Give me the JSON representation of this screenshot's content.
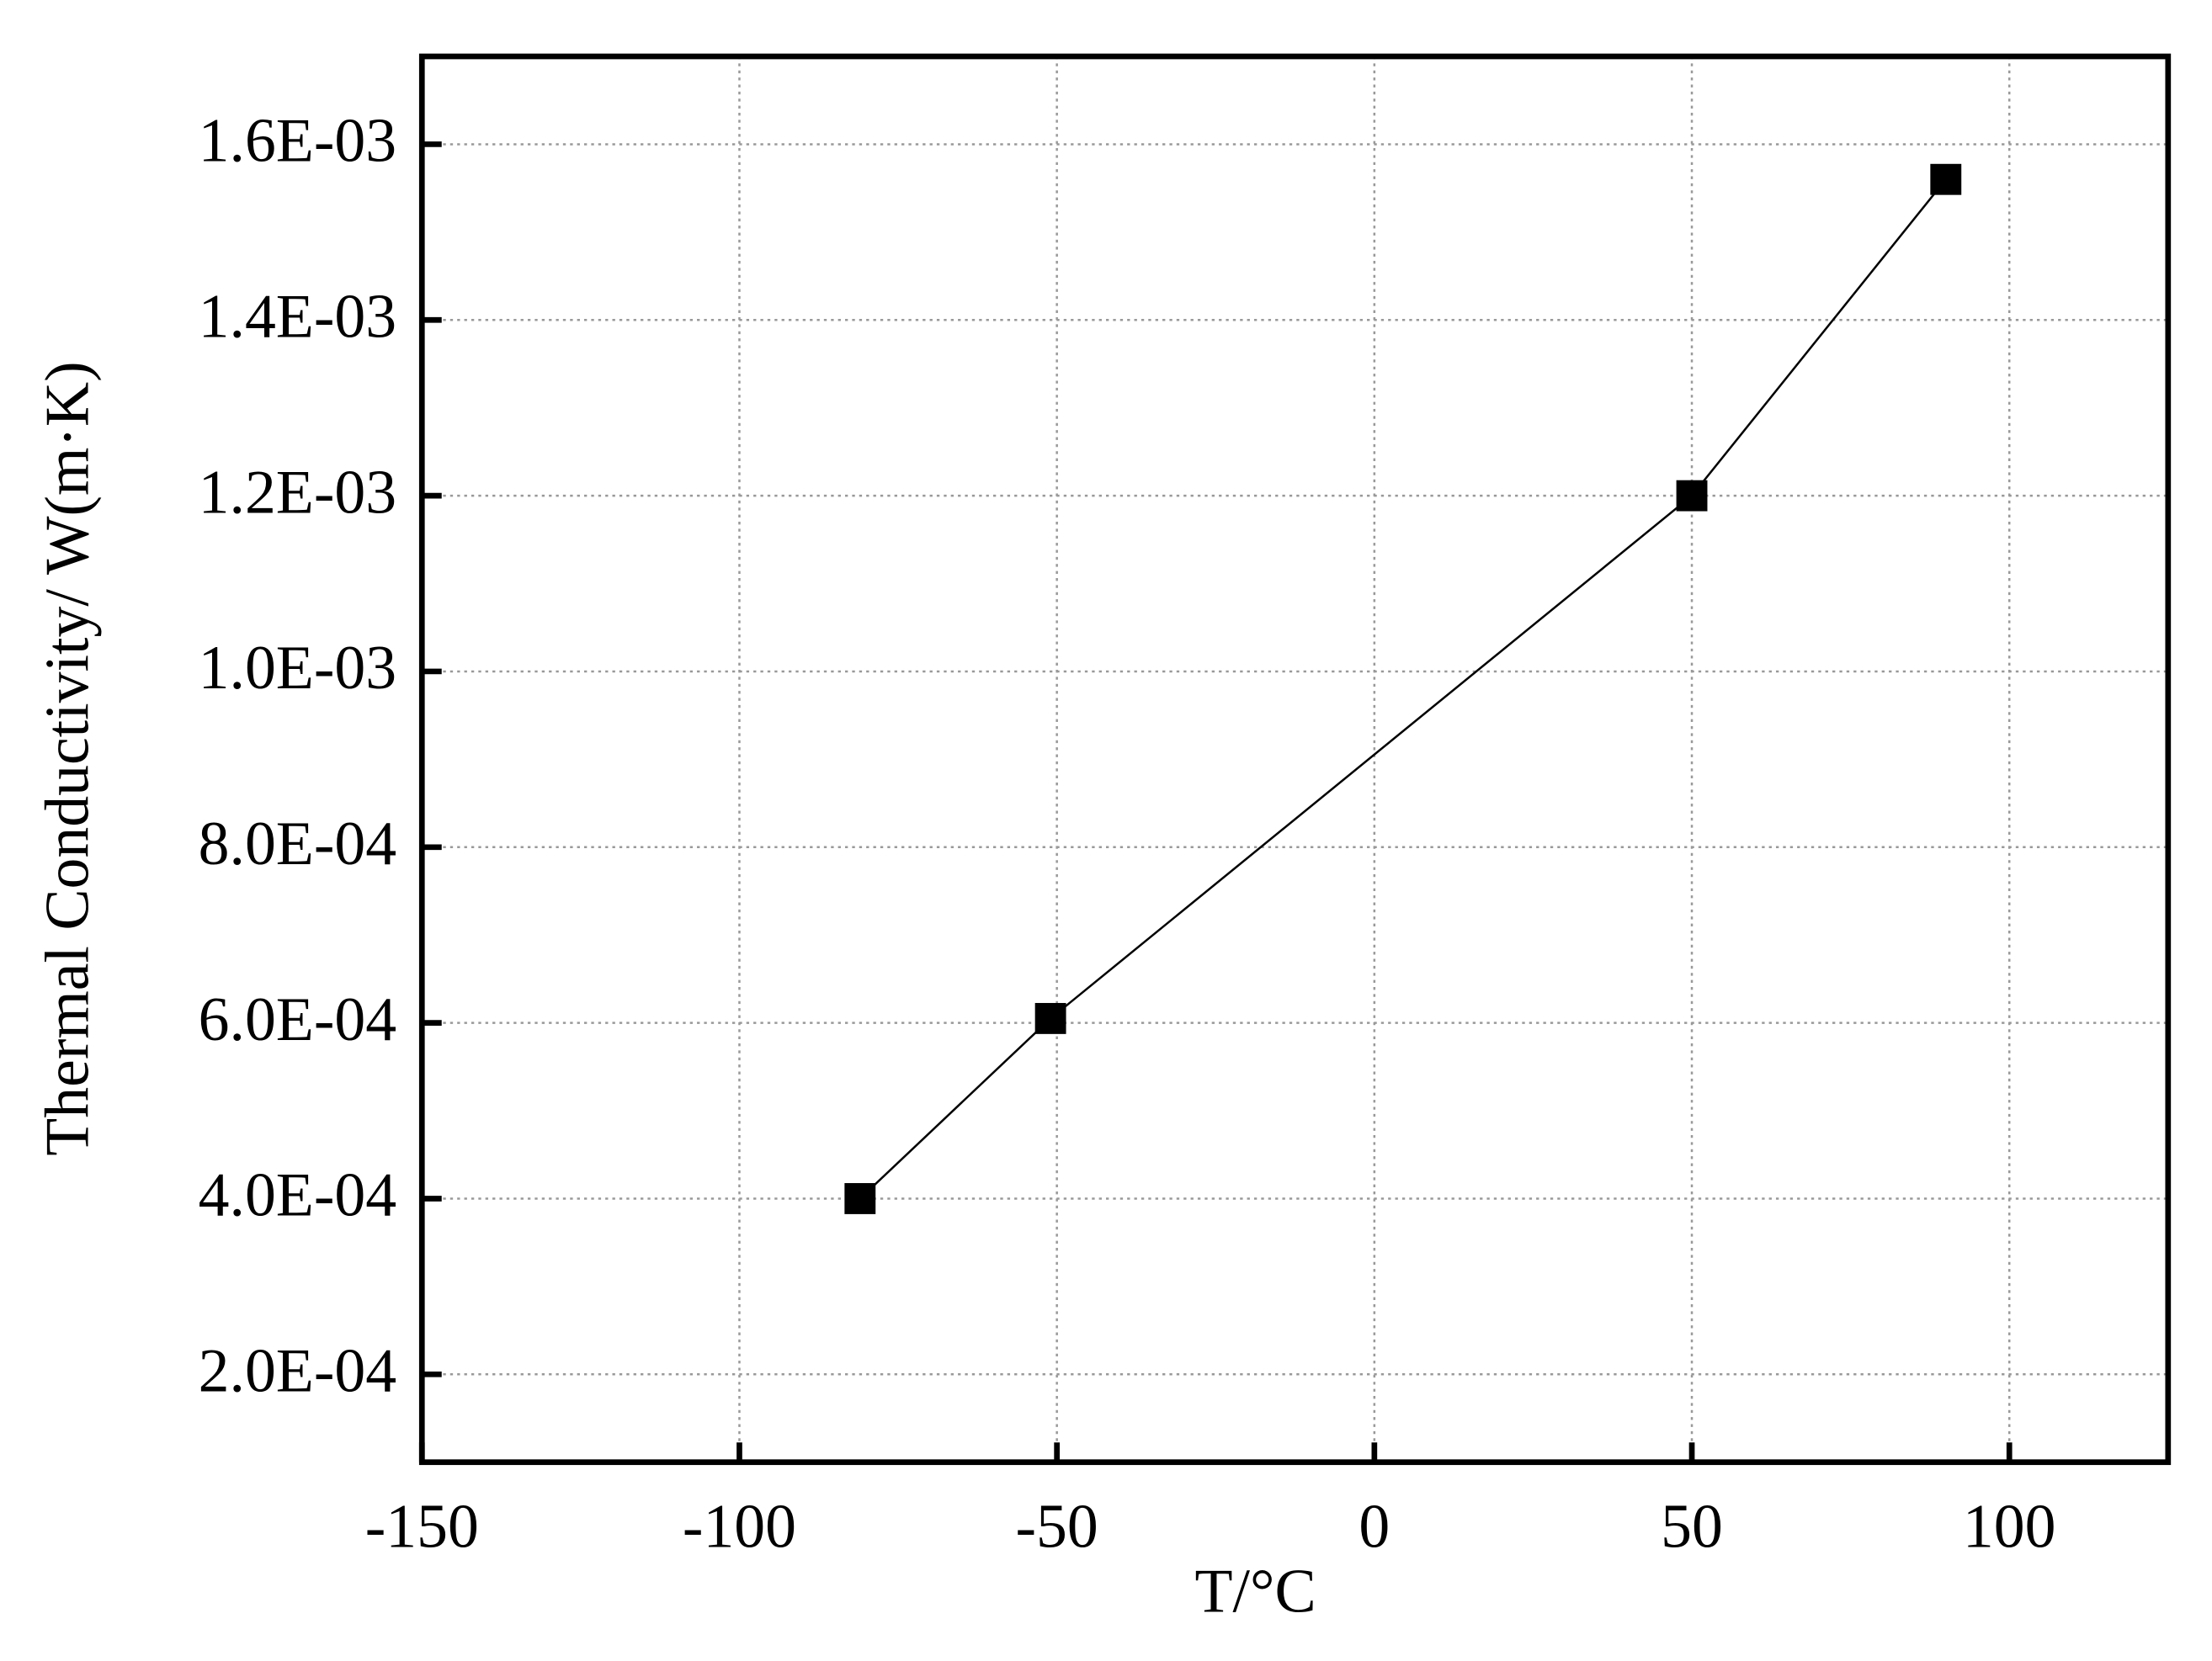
{
  "chart_data": {
    "type": "line",
    "xlabel": "T/°C",
    "ylabel": "Thermal Conductivity/ W(m·K)",
    "x": [
      -81,
      -51,
      50,
      90
    ],
    "series": [
      {
        "name": "Thermal Conductivity",
        "color": "#000000",
        "values": [
          0.0004,
          0.000605,
          0.0012,
          0.00156
        ]
      }
    ],
    "xlim": [
      -150,
      125
    ],
    "xticks": [
      -150,
      -100,
      -50,
      0,
      50,
      100
    ],
    "ylim": [
      0.0001,
      0.0017
    ],
    "yticks": [
      {
        "value": 0.0002,
        "label": "2.0E-04"
      },
      {
        "value": 0.0004,
        "label": "4.0E-04"
      },
      {
        "value": 0.0006,
        "label": "6.0E-04"
      },
      {
        "value": 0.0008,
        "label": "8.0E-04"
      },
      {
        "value": 0.001,
        "label": "1.0E-03"
      },
      {
        "value": 0.0012,
        "label": "1.2E-03"
      },
      {
        "value": 0.0014,
        "label": "1.4E-03"
      },
      {
        "value": 0.0016,
        "label": "1.6E-03"
      }
    ],
    "grid": true
  }
}
